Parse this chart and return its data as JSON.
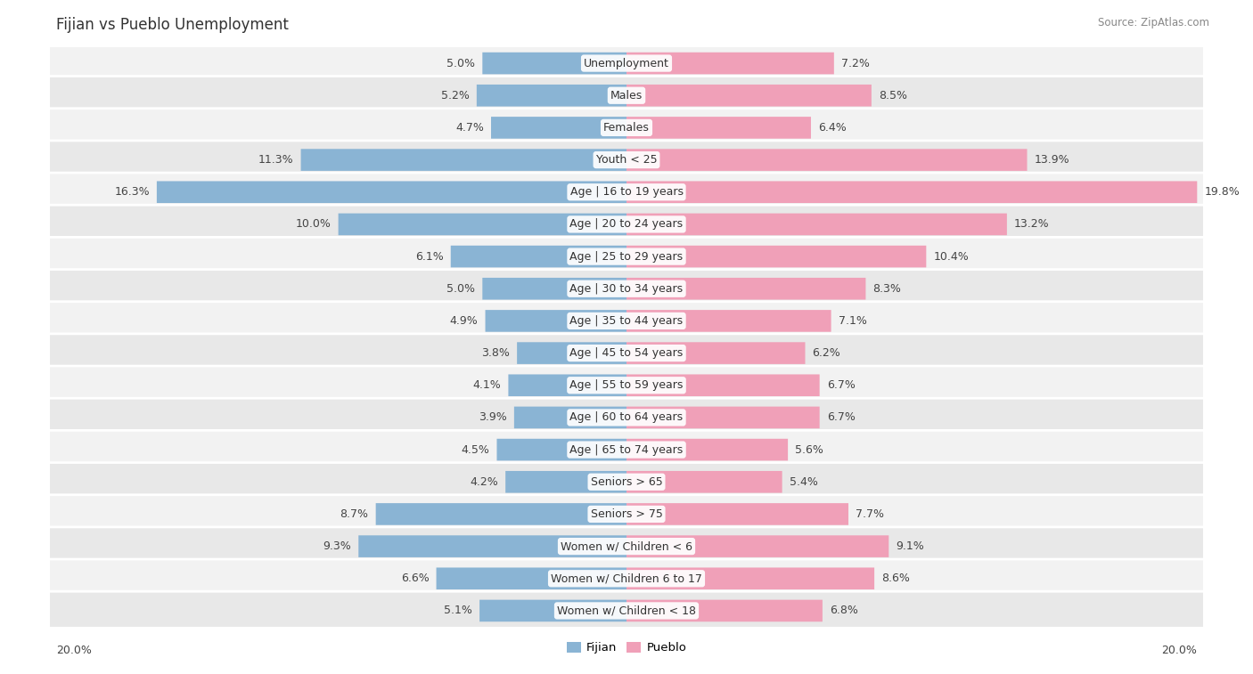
{
  "title": "Fijian vs Pueblo Unemployment",
  "source": "Source: ZipAtlas.com",
  "categories": [
    "Unemployment",
    "Males",
    "Females",
    "Youth < 25",
    "Age | 16 to 19 years",
    "Age | 20 to 24 years",
    "Age | 25 to 29 years",
    "Age | 30 to 34 years",
    "Age | 35 to 44 years",
    "Age | 45 to 54 years",
    "Age | 55 to 59 years",
    "Age | 60 to 64 years",
    "Age | 65 to 74 years",
    "Seniors > 65",
    "Seniors > 75",
    "Women w/ Children < 6",
    "Women w/ Children 6 to 17",
    "Women w/ Children < 18"
  ],
  "fijian": [
    5.0,
    5.2,
    4.7,
    11.3,
    16.3,
    10.0,
    6.1,
    5.0,
    4.9,
    3.8,
    4.1,
    3.9,
    4.5,
    4.2,
    8.7,
    9.3,
    6.6,
    5.1
  ],
  "pueblo": [
    7.2,
    8.5,
    6.4,
    13.9,
    19.8,
    13.2,
    10.4,
    8.3,
    7.1,
    6.2,
    6.7,
    6.7,
    5.6,
    5.4,
    7.7,
    9.1,
    8.6,
    6.8
  ],
  "fijian_color": "#8ab4d4",
  "pueblo_color": "#f0a0b8",
  "row_bg_odd": "#f2f2f2",
  "row_bg_even": "#e8e8e8",
  "max_val": 20.0,
  "label_fontsize": 9.0,
  "title_fontsize": 12,
  "source_fontsize": 8.5,
  "legend_fontsize": 9.5
}
